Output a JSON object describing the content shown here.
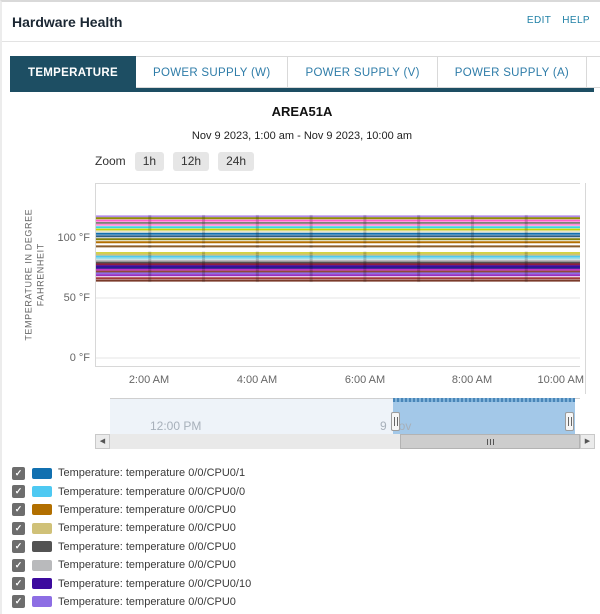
{
  "header": {
    "title": "Hardware Health",
    "links": [
      {
        "label": "EDIT"
      },
      {
        "label": "HELP"
      }
    ]
  },
  "tabs": [
    {
      "label": "TEMPERATURE",
      "active": true
    },
    {
      "label": "POWER SUPPLY (W)",
      "active": false
    },
    {
      "label": "POWER SUPPLY (V)",
      "active": false
    },
    {
      "label": "POWER SUPPLY (A)",
      "active": false
    }
  ],
  "chart_data": {
    "type": "line",
    "title": "AREA51A",
    "subtitle": "Nov 9 2023, 1:00 am - Nov 9 2023, 10:00 am",
    "zoom": {
      "label": "Zoom",
      "options": [
        "1h",
        "12h",
        "24h"
      ]
    },
    "ylabel": "TEMPERATURE IN DEGREE FAHRENHEIT",
    "ylabel_line1": "TEMPERATURE IN DEGREE",
    "ylabel_line2": "FAHRENHEIT",
    "yticks": [
      {
        "label": "100 °F",
        "value": 100
      },
      {
        "label": "50 °F",
        "value": 50
      },
      {
        "label": "0 °F",
        "value": 0
      }
    ],
    "ylim": [
      0,
      150
    ],
    "xticks": [
      "2:00 AM",
      "4:00 AM",
      "6:00 AM",
      "8:00 AM",
      "10:00 AM"
    ],
    "x_hours_span": 9,
    "grid": true,
    "series": [
      {
        "name": "",
        "color": "#b289e8",
        "value_f": 118
      },
      {
        "name": "",
        "color": "#8f8f00",
        "value_f": 116.5
      },
      {
        "name": "",
        "color": "#ff5ccc",
        "value_f": 114.5
      },
      {
        "name": "",
        "color": "#7c8577",
        "value_f": 112.5
      },
      {
        "name": "",
        "color": "#ff8ad8",
        "value_f": 111
      },
      {
        "name": "",
        "color": "#3fd4dd",
        "value_f": 109
      },
      {
        "name": "",
        "color": "#c6d300",
        "value_f": 107
      },
      {
        "name": "",
        "color": "#e8e4c9",
        "value_f": 105.5
      },
      {
        "name": "Temperature: temperature 0/0/CPU0/1",
        "color": "#1170b0",
        "value_f": 103.5
      },
      {
        "name": "",
        "color": "#2b5f88",
        "value_f": 101.5
      },
      {
        "name": "",
        "color": "#80800d",
        "value_f": 99
      },
      {
        "name": "Temperature: temperature 0/0/CPU0",
        "color": "#b26f00",
        "value_f": 96.5
      },
      {
        "name": "",
        "color": "#8a5c29",
        "value_f": 93
      },
      {
        "name": "",
        "color": "#d3d345",
        "value_f": 87.5
      },
      {
        "name": "Temperature: temperature 0/0/CPU0",
        "color": "#d0c178",
        "value_f": 86
      },
      {
        "name": "Temperature: temperature 0/0/CPU0/0",
        "color": "#4ec9f2",
        "value_f": 84.5
      },
      {
        "name": "",
        "color": "#9adfe8",
        "value_f": 83
      },
      {
        "name": "Temperature: temperature 0/0/CPU0",
        "color": "#b9babc",
        "value_f": 81
      },
      {
        "name": "Temperature: temperature 0/0/CPU0",
        "color": "#535353",
        "value_f": 79.5
      },
      {
        "name": "",
        "color": "#8f1f3d",
        "value_f": 78
      },
      {
        "name": "Temperature: temperature 0/0/CPU0/10",
        "color": "#3c0a9e",
        "value_f": 76.5
      },
      {
        "name": "",
        "color": "#22228f",
        "value_f": 75
      },
      {
        "name": "",
        "color": "#c433c4",
        "value_f": 73.5
      },
      {
        "name": "",
        "color": "#8f4a3a",
        "value_f": 72
      },
      {
        "name": "Temperature: temperature 0/0/CPU0",
        "color": "#8d6ee4",
        "value_f": 70.5
      },
      {
        "name": "",
        "color": "#9b2fbf",
        "value_f": 69
      },
      {
        "name": "",
        "color": "#a33a3a",
        "value_f": 66.5
      },
      {
        "name": "",
        "color": "#7a3b2a",
        "value_f": 64.5
      }
    ],
    "navigator": {
      "labels": [
        {
          "text": "12:00 PM"
        },
        {
          "text": "9 Nov"
        }
      ]
    }
  },
  "legend": {
    "items": [
      {
        "checked": true,
        "color": "#1170b0",
        "label": "Temperature: temperature 0/0/CPU0/1"
      },
      {
        "checked": true,
        "color": "#4ec9f2",
        "label": "Temperature: temperature 0/0/CPU0/0"
      },
      {
        "checked": true,
        "color": "#b26f00",
        "label": "Temperature: temperature 0/0/CPU0"
      },
      {
        "checked": true,
        "color": "#d0c178",
        "label": "Temperature: temperature 0/0/CPU0"
      },
      {
        "checked": true,
        "color": "#535353",
        "label": "Temperature: temperature 0/0/CPU0"
      },
      {
        "checked": true,
        "color": "#b9babc",
        "label": "Temperature: temperature 0/0/CPU0"
      },
      {
        "checked": true,
        "color": "#3c0a9e",
        "label": "Temperature: temperature 0/0/CPU0/10"
      },
      {
        "checked": true,
        "color": "#8d6ee4",
        "label": "Temperature: temperature 0/0/CPU0"
      }
    ]
  },
  "colors": {
    "accent": "#1d4e63",
    "link": "#1d7fa5",
    "tab_text": "#2e7ca8",
    "navigator_selected": "#a3c8e8",
    "navigator_mask": "#eef3f9"
  }
}
